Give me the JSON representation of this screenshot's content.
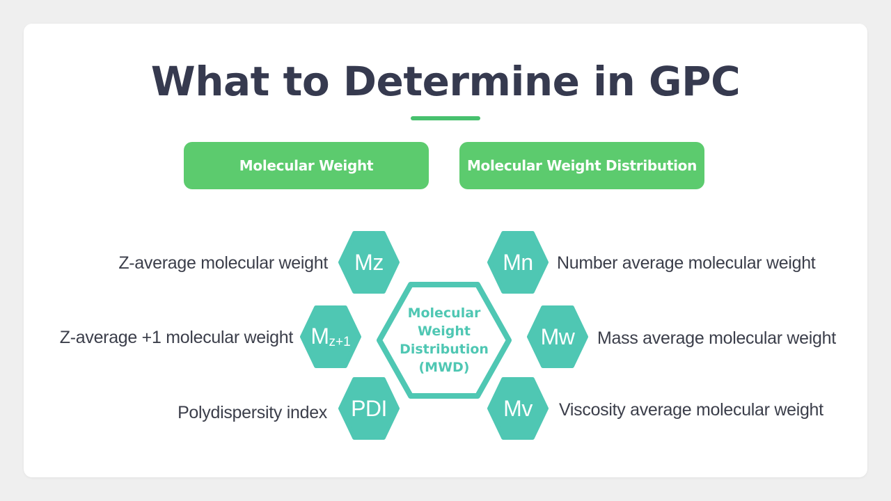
{
  "slide": {
    "title": "What to Determine in GPC"
  },
  "categories": {
    "left": "Molecular Weight",
    "right": "Molecular Weight Distribution"
  },
  "center": {
    "lines": [
      "Molecular",
      "Weight",
      "Distribution",
      "(MWD)"
    ]
  },
  "nodes": {
    "mz": {
      "symbol": "Mz",
      "description": "Z-average molecular weight"
    },
    "mz1": {
      "symbol_main": "M",
      "symbol_sub": "z+1",
      "description": "Z-average +1 molecular weight"
    },
    "pdi": {
      "symbol": "PDI",
      "description": "Polydispersity index"
    },
    "mn": {
      "symbol": "Mn",
      "description": "Number average molecular weight"
    },
    "mw": {
      "symbol": "Mw",
      "description": "Mass average molecular weight"
    },
    "mv": {
      "symbol": "Mv",
      "description": "Viscosity average molecular weight"
    }
  },
  "colors": {
    "title": "#363a4f",
    "accent_green": "#5ccb6e",
    "underline": "#47c16e",
    "teal": "#4fc7b3",
    "text": "#3b3e4a"
  }
}
